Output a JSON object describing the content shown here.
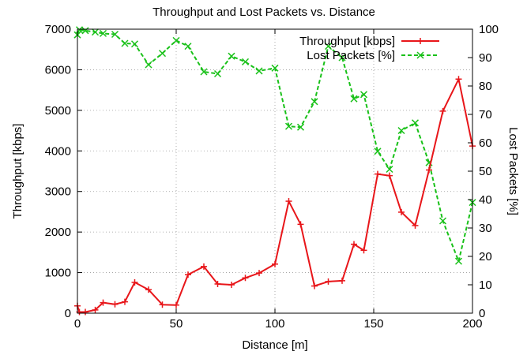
{
  "chart_data": {
    "type": "line",
    "title": "Throughput and Lost Packets vs. Distance",
    "xlabel": "Distance [m]",
    "ylabel": "Throughput [kbps]",
    "y2label": "Lost Packets [%]",
    "xlim": [
      0,
      200
    ],
    "ylim": [
      0,
      7000
    ],
    "y2lim": [
      0,
      100
    ],
    "x_ticks": [
      "0",
      "50",
      "100",
      "150",
      "200"
    ],
    "y_ticks": [
      "0",
      "1000",
      "2000",
      "3000",
      "4000",
      "5000",
      "6000",
      "7000"
    ],
    "y2_ticks": [
      "0",
      "10",
      "20",
      "30",
      "40",
      "50",
      "60",
      "70",
      "80",
      "90",
      "100"
    ],
    "grid": true,
    "legend_position": "top-right",
    "series": [
      {
        "name": "Throughput [kbps]",
        "axis": "left",
        "color": "#e8161a",
        "marker": "plus",
        "line": "solid",
        "x": [
          0,
          1,
          4,
          9,
          13,
          19,
          24,
          29,
          36,
          43,
          50,
          56,
          64,
          71,
          78,
          85,
          92,
          100,
          107,
          113,
          120,
          127,
          134,
          140,
          145,
          152,
          158,
          164,
          171,
          178,
          185,
          193,
          200
        ],
        "y": [
          180,
          30,
          30,
          80,
          260,
          220,
          280,
          760,
          580,
          210,
          200,
          950,
          1150,
          720,
          700,
          870,
          990,
          1210,
          2760,
          2190,
          670,
          780,
          800,
          1700,
          1550,
          3430,
          3390,
          2490,
          2160,
          3530,
          4980,
          5770,
          4120
        ]
      },
      {
        "name": "Lost Packets [%]",
        "axis": "right",
        "color": "#19c119",
        "marker": "x",
        "line": "dashed",
        "x": [
          0,
          1,
          4,
          9,
          13,
          19,
          24,
          29,
          36,
          43,
          50,
          56,
          64,
          71,
          78,
          85,
          92,
          100,
          107,
          113,
          120,
          127,
          134,
          140,
          145,
          152,
          158,
          164,
          171,
          178,
          185,
          193,
          200
        ],
        "y": [
          98,
          99.8,
          99.5,
          99,
          98.5,
          98.2,
          95,
          94.8,
          87.5,
          91.5,
          96,
          94,
          85,
          84.3,
          90.5,
          88.5,
          85.3,
          86.3,
          65.8,
          65.5,
          74.5,
          94,
          90,
          75.5,
          77,
          57,
          50.7,
          64.3,
          67,
          53,
          32.5,
          18.3,
          39
        ]
      }
    ]
  }
}
